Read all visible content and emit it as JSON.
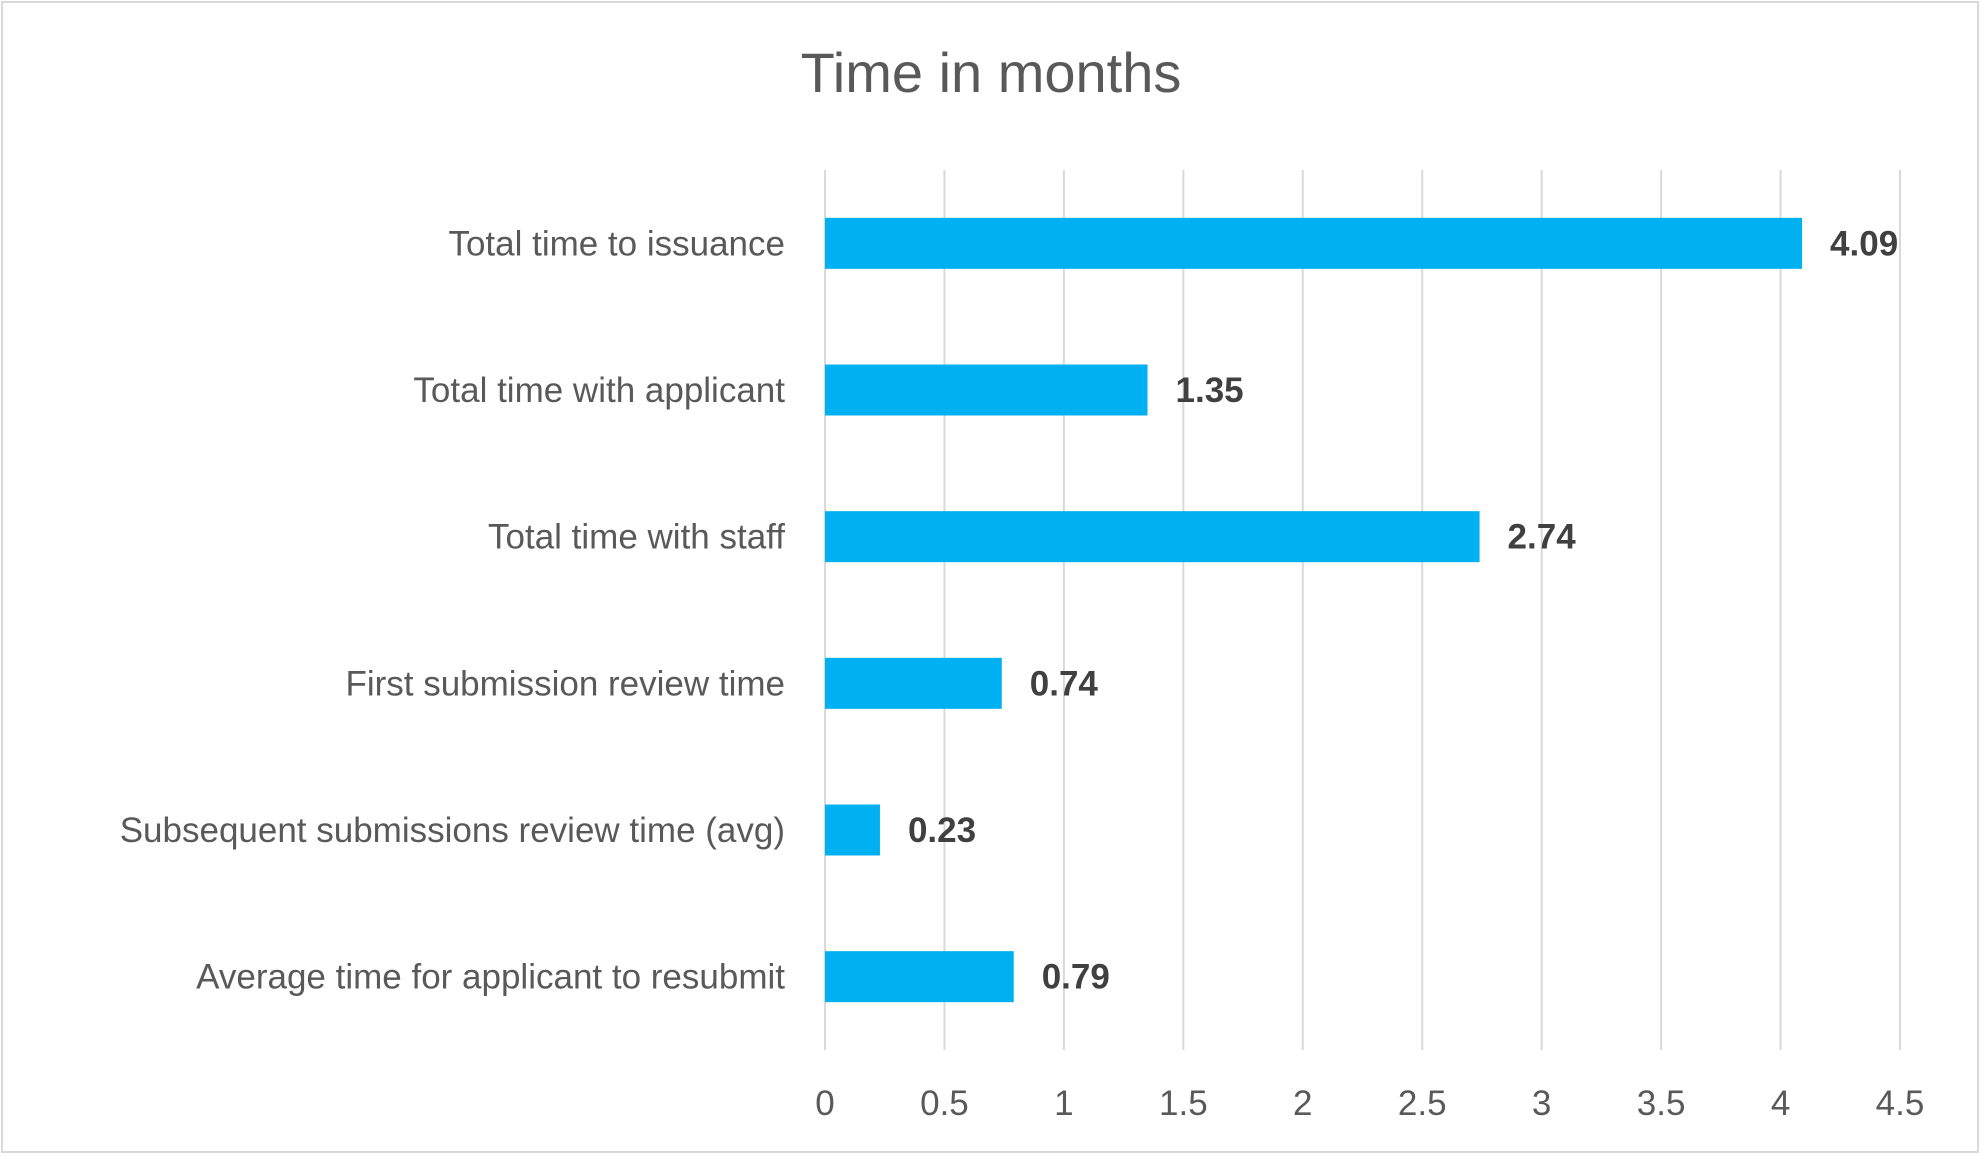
{
  "chart_data": {
    "type": "bar",
    "orientation": "horizontal",
    "title": "Time in months",
    "xlabel": "",
    "ylabel": "",
    "categories": [
      "Total time to issuance",
      "Total time with applicant",
      "Total time with staff",
      "First submission review time",
      "Subsequent submissions review time (avg)",
      "Average time for applicant to resubmit"
    ],
    "values": [
      4.09,
      1.35,
      2.74,
      0.74,
      0.23,
      0.79
    ],
    "data_labels": [
      "4.09",
      "1.35",
      "2.74",
      "0.74",
      "0.23",
      "0.79"
    ],
    "xlim": [
      0,
      4.5
    ],
    "ticks": [
      0,
      0.5,
      1,
      1.5,
      2,
      2.5,
      3,
      3.5,
      4,
      4.5
    ],
    "tick_labels": [
      "0",
      "0.5",
      "1",
      "1.5",
      "2",
      "2.5",
      "3",
      "3.5",
      "4",
      "4.5"
    ],
    "grid": true,
    "legend": "none",
    "bar_color": "#00B0F0",
    "gridline_color": "#D9D9D9"
  }
}
